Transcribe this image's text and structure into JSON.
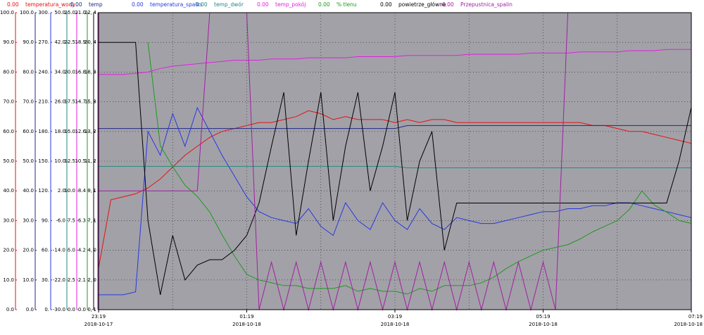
{
  "chart_data": {
    "type": "line",
    "grid": true,
    "x": [
      "23:19",
      "23:29",
      "23:39",
      "23:49",
      "23:59",
      "00:09",
      "00:19",
      "00:29",
      "00:39",
      "00:49",
      "00:59",
      "01:09",
      "01:19",
      "01:29",
      "01:39",
      "01:49",
      "01:59",
      "02:09",
      "02:19",
      "02:29",
      "02:39",
      "02:49",
      "02:59",
      "03:09",
      "03:19",
      "03:29",
      "03:39",
      "03:49",
      "03:59",
      "04:09",
      "04:19",
      "04:29",
      "04:39",
      "04:49",
      "04:59",
      "05:09",
      "05:19",
      "05:29",
      "05:39",
      "05:49",
      "05:59",
      "06:09",
      "06:19",
      "06:29",
      "06:39",
      "06:49",
      "06:59",
      "07:09",
      "07:19"
    ],
    "xlim": [
      "23:19",
      "07:19"
    ],
    "xticks": [
      "23:19",
      "01:19",
      "03:19",
      "05:19",
      "07:19"
    ],
    "xtick_dates": [
      "2018-10-17",
      "2018-10-18",
      "2018-10-18",
      "2018-10-18",
      "2018-10-18"
    ],
    "y_axes": [
      {
        "ylim": [
          0,
          100
        ],
        "yticks": [
          {
            "value": 0,
            "label": "0.0"
          },
          {
            "value": 10,
            "label": "10.0"
          },
          {
            "value": 20,
            "label": "20.0"
          },
          {
            "value": 30,
            "label": "30.0"
          },
          {
            "value": 40,
            "label": "40.0"
          },
          {
            "value": 50,
            "label": "50.0"
          },
          {
            "value": 60,
            "label": "60.0"
          },
          {
            "value": 70,
            "label": "70.0"
          },
          {
            "value": 80,
            "label": "80.0"
          },
          {
            "value": 90,
            "label": "90.0"
          },
          {
            "value": 100,
            "label": "100.0"
          }
        ]
      },
      {
        "ylim": [
          0,
          100
        ],
        "yticks": [
          {
            "value": 0,
            "label": "0.0"
          },
          {
            "value": 10,
            "label": "10.0"
          },
          {
            "value": 20,
            "label": "20.0"
          },
          {
            "value": 30,
            "label": "30.0"
          },
          {
            "value": 40,
            "label": "40.0"
          },
          {
            "value": 50,
            "label": "50.0"
          },
          {
            "value": 60,
            "label": "60.0"
          },
          {
            "value": 70,
            "label": "70.0"
          },
          {
            "value": 80,
            "label": "80.0"
          },
          {
            "value": 90,
            "label": "90.0"
          },
          {
            "value": 100,
            "label": "100.0"
          }
        ]
      },
      {
        "ylim": [
          0,
          300
        ],
        "yticks": [
          {
            "value": 0,
            "label": "0."
          },
          {
            "value": 30,
            "label": "30."
          },
          {
            "value": 60,
            "label": "60."
          },
          {
            "value": 90,
            "label": "90."
          },
          {
            "value": 120,
            "label": "120."
          },
          {
            "value": 150,
            "label": "150."
          },
          {
            "value": 180,
            "label": "180."
          },
          {
            "value": 210,
            "label": "210."
          },
          {
            "value": 240,
            "label": "240."
          },
          {
            "value": 270,
            "label": "270."
          },
          {
            "value": 300,
            "label": "300."
          }
        ]
      },
      {
        "ylim": [
          -30,
          50
        ],
        "yticks": [
          {
            "value": -30,
            "label": "-30.0"
          },
          {
            "value": -22,
            "label": "-22.0"
          },
          {
            "value": -14,
            "label": "-14.0"
          },
          {
            "value": -6,
            "label": "-6.0"
          },
          {
            "value": 2,
            "label": "2.0"
          },
          {
            "value": 10,
            "label": "10.0"
          },
          {
            "value": 18,
            "label": "18.0"
          },
          {
            "value": 26,
            "label": "26.0"
          },
          {
            "value": 34,
            "label": "34.0"
          },
          {
            "value": 42,
            "label": "42.0"
          },
          {
            "value": 50,
            "label": "50.0"
          }
        ]
      },
      {
        "ylim": [
          0,
          25
        ],
        "yticks": [
          {
            "value": 0,
            "label": "0.0"
          },
          2.5,
          {
            "value": 5,
            "label": "5.0"
          },
          7.5,
          {
            "value": 10,
            "label": "10.0"
          },
          12.5,
          {
            "value": 15,
            "label": "15.0"
          },
          17.5,
          {
            "value": 20,
            "label": "20.0"
          },
          22.5,
          {
            "value": 25,
            "label": "25.0"
          }
        ]
      },
      {
        "ylim": [
          0,
          21
        ],
        "yticks": [
          {
            "value": 0,
            "label": "0.0"
          },
          2.1,
          4.2,
          6.3,
          8.4,
          10.5,
          12.6,
          14.7,
          16.8,
          18.9,
          {
            "value": 21,
            "label": "21.0"
          }
        ]
      },
      {
        "ylim": [
          0,
          22
        ],
        "yticks": [
          {
            "value": 0,
            "label": "0,"
          },
          {
            "value": 2.2,
            "label": "2,"
          },
          {
            "value": 4.4,
            "label": "4,"
          },
          {
            "value": 6.6,
            "label": "7,"
          },
          {
            "value": 8.8,
            "label": "9,"
          },
          {
            "value": 11,
            "label": "11,"
          },
          {
            "value": 13.2,
            "label": "13,"
          },
          {
            "value": 15.4,
            "label": "15,"
          },
          {
            "value": 17.6,
            "label": "18,"
          },
          {
            "value": 19.8,
            "label": "20,"
          },
          {
            "value": 22,
            "label": "22,"
          }
        ]
      },
      {
        "ylim": [
          -1,
          4
        ],
        "yticks": [
          {
            "value": -1,
            "label": "-1"
          },
          {
            "value": -0.5,
            "label": "0"
          },
          0,
          {
            "value": 0.5,
            "label": "1"
          },
          1,
          {
            "value": 1.5,
            "label": "2"
          },
          2,
          {
            "value": 2.5,
            "label": "3"
          },
          3,
          {
            "value": 3.5,
            "label": "4"
          },
          4
        ]
      }
    ],
    "series": [
      {
        "name": "temperatura_wody",
        "reading": "0.00",
        "color": "#e81010",
        "axis": 0,
        "values": [
          14,
          37,
          38,
          39,
          41,
          44,
          48,
          52,
          55,
          58,
          60,
          61,
          62,
          63,
          63,
          64,
          65,
          67,
          66,
          64,
          65,
          64,
          64,
          64,
          63,
          64,
          63,
          64,
          64,
          63,
          63,
          63,
          63,
          63,
          63,
          63,
          63,
          63,
          63,
          63,
          62,
          62,
          61,
          60,
          60,
          59,
          58,
          57,
          56
        ]
      },
      {
        "name": "temp",
        "reading": "0.00",
        "color": "#202888",
        "axis": 1,
        "values": [
          61,
          61,
          61,
          61,
          61,
          61,
          61,
          61,
          61,
          61,
          61,
          61,
          61,
          61,
          61,
          61,
          61,
          61,
          61,
          61,
          61,
          61,
          61,
          61,
          61,
          62,
          62,
          62,
          62,
          62,
          62,
          62,
          62,
          62,
          62,
          62,
          62,
          62,
          62,
          62,
          62,
          62,
          62,
          62,
          62,
          62,
          62,
          62,
          62
        ]
      },
      {
        "name": "temperatura_spalin",
        "reading": "0.00",
        "color": "#2838e0",
        "axis": 2,
        "values": [
          15,
          15,
          15,
          18,
          180,
          156,
          198,
          165,
          204,
          180,
          156,
          135,
          114,
          99,
          93,
          90,
          87,
          102,
          84,
          75,
          108,
          90,
          81,
          108,
          90,
          81,
          102,
          87,
          81,
          93,
          90,
          87,
          87,
          90,
          93,
          96,
          99,
          99,
          102,
          102,
          105,
          105,
          108,
          108,
          105,
          102,
          99,
          96,
          93
        ]
      },
      {
        "name": "temp_dwór",
        "reading": "0.00",
        "color": "#208a80",
        "axis": 3,
        "values": [
          8.6,
          8.6,
          8.6,
          8.6,
          8.6,
          8.6,
          8.6,
          8.6,
          8.6,
          8.6,
          8.6,
          8.6,
          8.6,
          8.6,
          8.6,
          8.6,
          8.6,
          8.6,
          8.6,
          8.6,
          8.6,
          8.6,
          8.6,
          8.6,
          8.6,
          8.2,
          8.2,
          8.2,
          8.2,
          8.2,
          8.2,
          8.2,
          8.2,
          8.2,
          8.2,
          8.2,
          8.2,
          8.2,
          8.2,
          8.2,
          8.2,
          8.2,
          8.2,
          8.2,
          8.2,
          8.2,
          8.2,
          8.2,
          8.2
        ]
      },
      {
        "name": "temp_pokój",
        "reading": "0.00",
        "color": "#e020e0",
        "axis": 4,
        "values": [
          19.8,
          19.8,
          19.8,
          19.9,
          20.0,
          20.3,
          20.5,
          20.6,
          20.7,
          20.8,
          20.9,
          21.0,
          21.0,
          21.0,
          21.1,
          21.1,
          21.1,
          21.2,
          21.2,
          21.2,
          21.2,
          21.3,
          21.3,
          21.3,
          21.3,
          21.4,
          21.4,
          21.4,
          21.4,
          21.4,
          21.5,
          21.5,
          21.5,
          21.5,
          21.5,
          21.6,
          21.6,
          21.6,
          21.6,
          21.7,
          21.7,
          21.7,
          21.7,
          21.8,
          21.8,
          21.8,
          21.9,
          21.9,
          21.9
        ]
      },
      {
        "name": "% tlenu",
        "reading": "0.00",
        "color": "#1e9a1e",
        "axis": 5,
        "values": [
          null,
          null,
          null,
          null,
          18.9,
          11.6,
          10.1,
          8.8,
          8.0,
          6.9,
          5.3,
          3.8,
          2.5,
          2.1,
          1.9,
          1.7,
          1.7,
          1.5,
          1.5,
          1.5,
          1.7,
          1.3,
          1.5,
          1.3,
          1.3,
          1.1,
          1.5,
          1.3,
          1.7,
          1.7,
          1.7,
          1.9,
          2.3,
          2.9,
          3.4,
          3.8,
          4.2,
          4.4,
          4.6,
          5.0,
          5.5,
          5.9,
          6.3,
          7.1,
          8.4,
          7.4,
          6.9,
          6.3,
          6.1
        ]
      },
      {
        "name": "powietrze_główne",
        "reading": "0.00",
        "color": "#000000",
        "axis": 6,
        "values": [
          19.8,
          19.8,
          19.8,
          19.8,
          6.6,
          1.1,
          5.5,
          2.2,
          3.3,
          3.7,
          3.7,
          4.4,
          5.5,
          7.9,
          12.1,
          16.1,
          5.5,
          11,
          16.1,
          6.6,
          12.1,
          16.1,
          8.8,
          12.1,
          16.1,
          6.6,
          11,
          13.2,
          4.4,
          7.9,
          7.9,
          7.9,
          7.9,
          7.9,
          7.9,
          7.9,
          7.9,
          7.9,
          7.9,
          7.9,
          7.9,
          7.9,
          7.9,
          7.9,
          7.9,
          7.9,
          7.9,
          11,
          15
        ]
      },
      {
        "name": "Przepustnica_spalin",
        "reading": "0.00",
        "color": "#a020a0",
        "axis": 7,
        "values": [
          1,
          1,
          1,
          1,
          1,
          1,
          1,
          1,
          1,
          4,
          4,
          4,
          4,
          -1,
          -0.2,
          -1,
          -0.2,
          -1,
          -0.2,
          -1,
          -0.2,
          -1,
          -0.2,
          -1,
          -0.2,
          -1,
          -0.2,
          -1,
          -0.2,
          -1,
          -0.2,
          -1,
          -0.2,
          -1,
          -0.2,
          -1,
          -0.2,
          -1,
          4,
          4,
          4,
          4,
          4,
          4,
          4,
          4,
          4,
          4,
          4
        ]
      }
    ]
  }
}
